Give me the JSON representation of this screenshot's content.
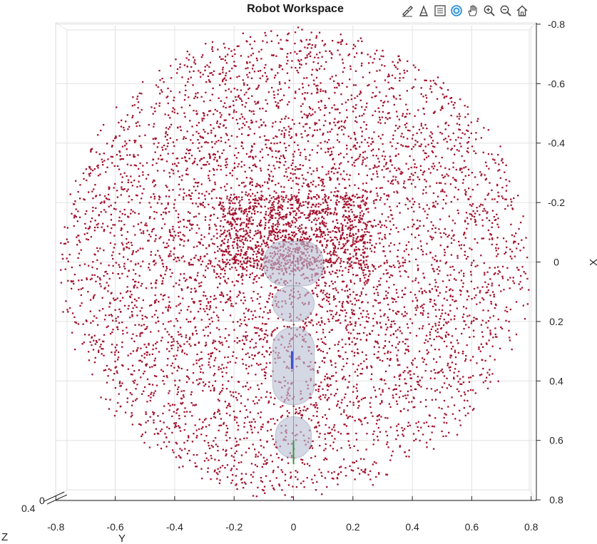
{
  "title": "Robot Workspace",
  "toolbar": {
    "icons": [
      "brush-icon",
      "data-tips-icon",
      "legend-icon",
      "rotate-3d-icon",
      "pan-icon",
      "zoom-in-icon",
      "zoom-out-icon",
      "home-icon"
    ]
  },
  "colors": {
    "points": "#a3122e",
    "link_fill": "#b9bfd3",
    "grid": "#e2e2e2",
    "axis": "#262626"
  },
  "chart_data": {
    "type": "scatter",
    "title": "Robot Workspace",
    "view": "top-down 3D view",
    "xlabel": "Y",
    "ylabel": "X",
    "zlabel": "Z",
    "z_tick_labels": [
      "0.4",
      "0"
    ],
    "horizontal_axis": {
      "label": "Y",
      "range": [
        -0.8,
        0.8
      ],
      "ticks": [
        -0.8,
        -0.6,
        -0.4,
        -0.2,
        0,
        0.2,
        0.4,
        0.6,
        0.8
      ],
      "tick_labels": [
        "-0.8",
        "-0.6",
        "-0.4",
        "-0.2",
        "0",
        "0.2",
        "0.4",
        "0.6",
        "0.8"
      ]
    },
    "vertical_axis": {
      "label": "X",
      "range": [
        -0.8,
        0.8
      ],
      "direction": "reversed",
      "ticks": [
        -0.8,
        -0.6,
        -0.4,
        -0.2,
        0,
        0.2,
        0.4,
        0.6,
        0.8
      ],
      "tick_labels": [
        "-0.8",
        "-0.6",
        "-0.4",
        "-0.2",
        "0",
        "0.2",
        "0.4",
        "0.6",
        "0.8"
      ]
    },
    "grid": true,
    "series": [
      {
        "marker": "square",
        "color": "#a3122e",
        "approx_point_count": 6000,
        "distribution": "filled disk, denser near center",
        "center": [
          0,
          0
        ],
        "radius": 0.78
      }
    ],
    "robot": {
      "base_point": [
        0,
        0.68
      ],
      "links": [
        {
          "y_range": [
            -0.1,
            0.1
          ],
          "x_range": [
            -0.07,
            0.08
          ]
        },
        {
          "y_range": [
            -0.07,
            0.07
          ],
          "x_range": [
            0.08,
            0.2
          ]
        },
        {
          "y_range": [
            -0.07,
            0.07
          ],
          "x_range": [
            0.22,
            0.48
          ]
        },
        {
          "y_range": [
            -0.06,
            0.06
          ],
          "x_range": [
            0.52,
            0.66
          ]
        }
      ]
    }
  }
}
